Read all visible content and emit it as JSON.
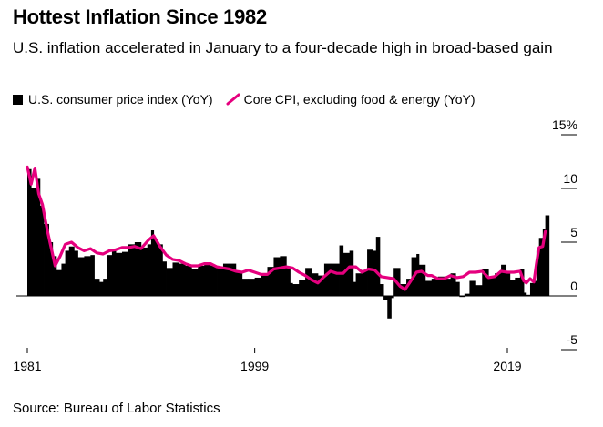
{
  "header": {
    "title": "Hottest Inflation Since 1982",
    "subtitle": "U.S. inflation accelerated in January to a four-decade high in broad-based gain"
  },
  "legend": {
    "cpi_label": "U.S. consumer price index (YoY)",
    "core_label": "Core CPI, excluding food & energy (YoY)"
  },
  "source": "Source: Bureau of Labor Statistics",
  "colors": {
    "cpi": "#000000",
    "core": "#e5007e",
    "grid": "#000000"
  },
  "chart_data": {
    "type": "bar+line",
    "title": "Hottest Inflation Since 1982",
    "xlabel": "",
    "ylabel": "",
    "xlim": [
      1981.0,
      2022.1
    ],
    "ylim": [
      -5,
      15
    ],
    "y_ticks": [
      15,
      10,
      5,
      0,
      -5
    ],
    "y_tick_labels": [
      "15%",
      "10",
      "5",
      "0",
      "-5"
    ],
    "x_ticks": [
      1981,
      1999,
      2019
    ],
    "x_tick_labels": [
      "1981",
      "1999",
      "2019"
    ],
    "series": [
      {
        "name": "U.S. consumer price index (YoY)",
        "kind": "bar",
        "points": [
          [
            1981.0,
            11.8
          ],
          [
            1981.3,
            10.0
          ],
          [
            1981.7,
            10.9
          ],
          [
            1982.0,
            8.4
          ],
          [
            1982.3,
            6.7
          ],
          [
            1982.7,
            5.0
          ],
          [
            1983.0,
            3.7
          ],
          [
            1983.3,
            2.4
          ],
          [
            1983.7,
            3.0
          ],
          [
            1984.0,
            4.2
          ],
          [
            1984.3,
            4.6
          ],
          [
            1984.7,
            4.2
          ],
          [
            1985.0,
            3.6
          ],
          [
            1985.5,
            3.7
          ],
          [
            1986.0,
            3.8
          ],
          [
            1986.3,
            1.6
          ],
          [
            1986.7,
            1.3
          ],
          [
            1987.0,
            1.6
          ],
          [
            1987.3,
            3.8
          ],
          [
            1987.7,
            4.3
          ],
          [
            1988.0,
            4.0
          ],
          [
            1988.5,
            4.1
          ],
          [
            1989.0,
            4.8
          ],
          [
            1989.5,
            5.0
          ],
          [
            1990.0,
            4.5
          ],
          [
            1990.5,
            4.8
          ],
          [
            1990.8,
            6.1
          ],
          [
            1991.0,
            5.3
          ],
          [
            1991.3,
            4.8
          ],
          [
            1991.7,
            3.2
          ],
          [
            1992.0,
            2.6
          ],
          [
            1992.5,
            3.1
          ],
          [
            1993.0,
            3.0
          ],
          [
            1993.5,
            2.8
          ],
          [
            1994.0,
            2.5
          ],
          [
            1994.5,
            2.8
          ],
          [
            1995.0,
            2.9
          ],
          [
            1995.5,
            2.8
          ],
          [
            1996.0,
            2.7
          ],
          [
            1996.5,
            3.0
          ],
          [
            1997.0,
            3.0
          ],
          [
            1997.5,
            2.2
          ],
          [
            1998.0,
            1.6
          ],
          [
            1998.5,
            1.6
          ],
          [
            1999.0,
            1.7
          ],
          [
            1999.5,
            2.1
          ],
          [
            2000.0,
            2.7
          ],
          [
            2000.5,
            3.6
          ],
          [
            2001.0,
            3.7
          ],
          [
            2001.5,
            2.7
          ],
          [
            2001.8,
            1.2
          ],
          [
            2002.0,
            1.1
          ],
          [
            2002.5,
            1.5
          ],
          [
            2003.0,
            2.6
          ],
          [
            2003.5,
            2.1
          ],
          [
            2004.0,
            1.9
          ],
          [
            2004.5,
            3.0
          ],
          [
            2005.0,
            3.0
          ],
          [
            2005.7,
            4.7
          ],
          [
            2006.0,
            4.0
          ],
          [
            2006.5,
            4.2
          ],
          [
            2006.8,
            1.3
          ],
          [
            2007.0,
            2.1
          ],
          [
            2007.5,
            2.4
          ],
          [
            2007.9,
            4.3
          ],
          [
            2008.3,
            4.2
          ],
          [
            2008.6,
            5.5
          ],
          [
            2008.9,
            1.1
          ],
          [
            2009.2,
            -0.4
          ],
          [
            2009.5,
            -2.1
          ],
          [
            2009.8,
            -0.2
          ],
          [
            2010.0,
            2.6
          ],
          [
            2010.5,
            1.1
          ],
          [
            2011.0,
            1.6
          ],
          [
            2011.4,
            3.6
          ],
          [
            2011.8,
            3.9
          ],
          [
            2012.0,
            2.9
          ],
          [
            2012.5,
            1.4
          ],
          [
            2013.0,
            1.6
          ],
          [
            2013.5,
            1.8
          ],
          [
            2014.0,
            1.6
          ],
          [
            2014.5,
            2.1
          ],
          [
            2014.9,
            1.3
          ],
          [
            2015.2,
            -0.1
          ],
          [
            2015.6,
            0.2
          ],
          [
            2016.0,
            1.4
          ],
          [
            2016.5,
            1.0
          ],
          [
            2017.0,
            2.5
          ],
          [
            2017.5,
            1.7
          ],
          [
            2018.0,
            2.1
          ],
          [
            2018.5,
            2.9
          ],
          [
            2018.9,
            2.2
          ],
          [
            2019.2,
            1.5
          ],
          [
            2019.6,
            1.7
          ],
          [
            2020.0,
            2.5
          ],
          [
            2020.3,
            0.3
          ],
          [
            2020.5,
            0.1
          ],
          [
            2020.8,
            1.2
          ],
          [
            2021.1,
            1.4
          ],
          [
            2021.3,
            4.2
          ],
          [
            2021.5,
            5.4
          ],
          [
            2021.8,
            6.2
          ],
          [
            2022.0,
            7.5
          ]
        ]
      },
      {
        "name": "Core CPI, excluding food & energy (YoY)",
        "kind": "line",
        "points": [
          [
            1981.0,
            12.0
          ],
          [
            1981.3,
            10.4
          ],
          [
            1981.6,
            11.9
          ],
          [
            1981.9,
            9.5
          ],
          [
            1982.2,
            8.5
          ],
          [
            1982.6,
            6.0
          ],
          [
            1982.9,
            4.4
          ],
          [
            1983.2,
            2.8
          ],
          [
            1983.6,
            3.7
          ],
          [
            1984.0,
            4.8
          ],
          [
            1984.5,
            5.0
          ],
          [
            1985.0,
            4.5
          ],
          [
            1985.5,
            4.2
          ],
          [
            1986.0,
            4.4
          ],
          [
            1986.5,
            4.0
          ],
          [
            1987.0,
            3.9
          ],
          [
            1987.5,
            4.2
          ],
          [
            1988.0,
            4.3
          ],
          [
            1988.5,
            4.5
          ],
          [
            1989.0,
            4.5
          ],
          [
            1989.5,
            4.6
          ],
          [
            1990.0,
            4.4
          ],
          [
            1990.6,
            5.2
          ],
          [
            1991.0,
            5.6
          ],
          [
            1991.5,
            4.6
          ],
          [
            1992.0,
            3.8
          ],
          [
            1992.5,
            3.4
          ],
          [
            1993.0,
            3.3
          ],
          [
            1993.5,
            3.0
          ],
          [
            1994.0,
            2.8
          ],
          [
            1994.5,
            2.8
          ],
          [
            1995.0,
            3.0
          ],
          [
            1995.5,
            3.0
          ],
          [
            1996.0,
            2.7
          ],
          [
            1996.5,
            2.6
          ],
          [
            1997.0,
            2.5
          ],
          [
            1997.5,
            2.3
          ],
          [
            1998.0,
            2.2
          ],
          [
            1998.5,
            2.4
          ],
          [
            1999.0,
            2.2
          ],
          [
            1999.5,
            2.0
          ],
          [
            2000.0,
            2.0
          ],
          [
            2000.5,
            2.5
          ],
          [
            2001.0,
            2.6
          ],
          [
            2001.5,
            2.7
          ],
          [
            2002.0,
            2.6
          ],
          [
            2002.5,
            2.2
          ],
          [
            2003.0,
            1.9
          ],
          [
            2003.5,
            1.5
          ],
          [
            2004.0,
            1.2
          ],
          [
            2004.5,
            1.8
          ],
          [
            2005.0,
            2.3
          ],
          [
            2005.5,
            2.1
          ],
          [
            2006.0,
            2.1
          ],
          [
            2006.5,
            2.7
          ],
          [
            2007.0,
            2.7
          ],
          [
            2007.5,
            2.2
          ],
          [
            2008.0,
            2.5
          ],
          [
            2008.5,
            2.4
          ],
          [
            2009.0,
            1.8
          ],
          [
            2009.5,
            1.7
          ],
          [
            2010.0,
            1.6
          ],
          [
            2010.5,
            0.9
          ],
          [
            2010.9,
            0.6
          ],
          [
            2011.3,
            1.3
          ],
          [
            2011.8,
            2.2
          ],
          [
            2012.2,
            2.3
          ],
          [
            2012.7,
            1.9
          ],
          [
            2013.0,
            1.9
          ],
          [
            2013.5,
            1.6
          ],
          [
            2014.0,
            1.6
          ],
          [
            2014.5,
            1.9
          ],
          [
            2015.0,
            1.7
          ],
          [
            2015.5,
            1.8
          ],
          [
            2016.0,
            2.2
          ],
          [
            2016.5,
            2.2
          ],
          [
            2017.0,
            2.3
          ],
          [
            2017.5,
            1.7
          ],
          [
            2018.0,
            1.8
          ],
          [
            2018.5,
            2.3
          ],
          [
            2019.0,
            2.2
          ],
          [
            2019.5,
            2.2
          ],
          [
            2020.0,
            2.3
          ],
          [
            2020.3,
            1.4
          ],
          [
            2020.5,
            1.2
          ],
          [
            2020.8,
            1.6
          ],
          [
            2021.1,
            1.3
          ],
          [
            2021.3,
            3.0
          ],
          [
            2021.5,
            4.5
          ],
          [
            2021.8,
            4.6
          ],
          [
            2022.0,
            6.0
          ]
        ]
      }
    ]
  }
}
